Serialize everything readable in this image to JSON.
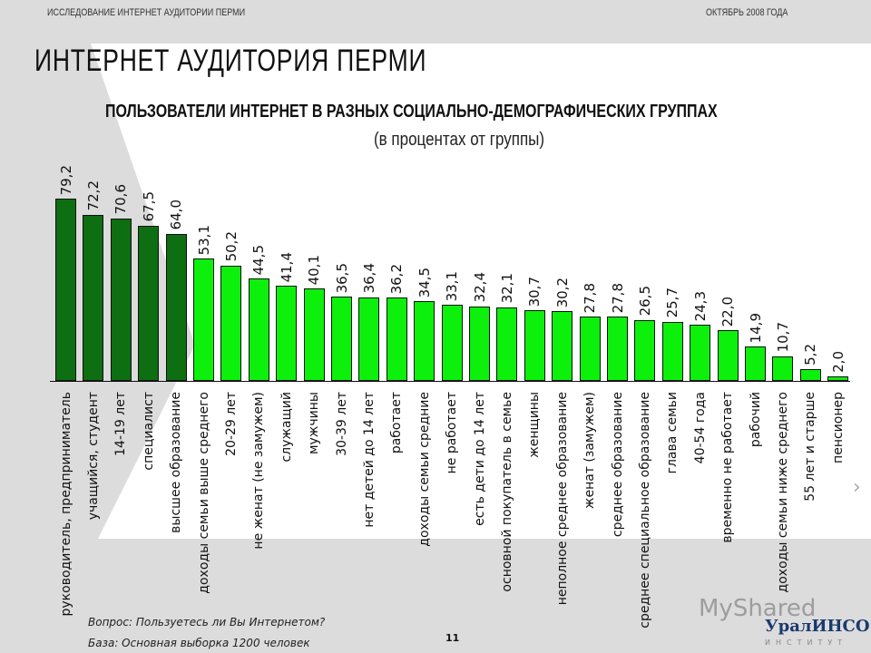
{
  "header": {
    "left": "ИССЛЕДОВАНИЕ ИНТЕРНЕТ АУДИТОРИИ ПЕРМИ",
    "right": "ОКТЯБРЬ 2008 ГОДА"
  },
  "title": "ИНТЕРНЕТ АУДИТОРИЯ ПЕРМИ",
  "footer": {
    "question": "Вопрос: Пользуетесь ли Вы Интернетом?",
    "base": "База: Основная выборка 1200  человек",
    "page": "11"
  },
  "logos": {
    "watermark": "MyShared",
    "brand": "УралИНСО",
    "brand_sub": "ИНСТИТУТ"
  },
  "colors": {
    "highlight": "#0d6e12",
    "normal": "#0cf00c"
  },
  "chart_data": {
    "type": "bar",
    "title": "ПОЛЬЗОВАТЕЛИ ИНТЕРНЕТ В РАЗНЫХ СОЦИАЛЬНО-ДЕМОГРАФИЧЕСКИХ ГРУППАХ",
    "subtitle": "(в процентах от группы)",
    "ylim": [
      0,
      80
    ],
    "grid": false,
    "categories": [
      "руководитель, предприниматель",
      "учащийся, студент",
      "14-19 лет",
      "специалист",
      "высшее образование",
      "доходы семьи выше среднего",
      "20-29 лет",
      "не женат (не замужем)",
      "служащий",
      "мужчины",
      "30-39 лет",
      "нет детей до 14 лет",
      "работает",
      "доходы семьи средние",
      "не работает",
      "есть дети до 14 лет",
      "основной покупатель в семье",
      "женщины",
      "неполное среднее образование",
      "женат (замужем)",
      "среднее образование",
      "среднее специальное образование",
      "глава семьи",
      "40-54 года",
      "временно не работает",
      "рабочий",
      "доходы семьи ниже среднего",
      "55 лет и старше",
      "пенсионер"
    ],
    "values": [
      79.2,
      72.2,
      70.6,
      67.5,
      64.0,
      53.1,
      50.2,
      44.5,
      41.4,
      40.1,
      36.5,
      36.4,
      36.2,
      34.5,
      33.1,
      32.4,
      32.1,
      30.7,
      30.2,
      27.8,
      27.8,
      26.5,
      25.7,
      24.3,
      22.0,
      14.9,
      10.7,
      5.2,
      2.0
    ],
    "value_labels": [
      "79,2",
      "72,2",
      "70,6",
      "67,5",
      "64,0",
      "53,1",
      "50,2",
      "44,5",
      "41,4",
      "40,1",
      "36,5",
      "36,4",
      "36,2",
      "34,5",
      "33,1",
      "32,4",
      "32,1",
      "30,7",
      "30,2",
      "27,8",
      "27,8",
      "26,5",
      "25,7",
      "24,3",
      "22,0",
      "14,9",
      "10,7",
      "5,2",
      "2,0"
    ],
    "highlighted_count": 5
  }
}
